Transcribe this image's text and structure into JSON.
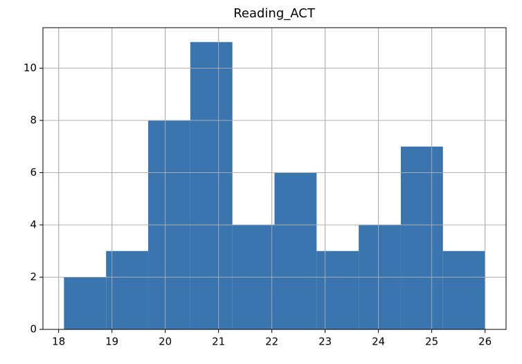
{
  "chart_data": {
    "type": "histogram",
    "title": "Reading_ACT",
    "bins": [
      18.1,
      18.89,
      19.68,
      20.47,
      21.26,
      22.05,
      22.84,
      23.63,
      24.42,
      25.21,
      26.0
    ],
    "values": [
      2,
      3,
      8,
      11,
      4,
      6,
      3,
      4,
      7,
      3
    ],
    "color": "#3a75b0",
    "xlim": [
      17.705,
      26.395
    ],
    "xticks": [
      18,
      19,
      20,
      21,
      22,
      23,
      24,
      25,
      26
    ],
    "ylim": [
      0,
      11.55
    ],
    "yticks": [
      0,
      2,
      4,
      6,
      8,
      10
    ],
    "grid": true
  }
}
